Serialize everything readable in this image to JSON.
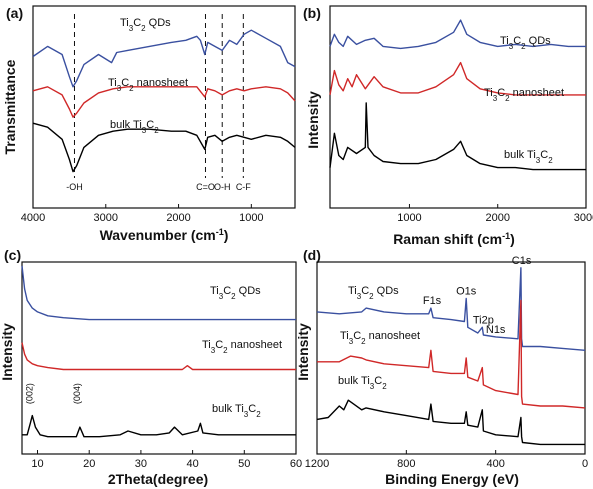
{
  "chart_data": [
    {
      "type": "line",
      "panel": "(a)",
      "xlabel": "Wavenumber (cm",
      "xlabel_sup": "-1",
      "xlabel_end": ")",
      "ylabel": "Transmittance",
      "xlim": [
        4000,
        400
      ],
      "ylim": [
        0,
        10
      ],
      "xticks": [
        4000,
        3000,
        2000,
        1000
      ],
      "series": [
        {
          "name": "Ti3C2 QDs",
          "color": "#3a50a0",
          "x": [
            4000,
            3800,
            3600,
            3500,
            3450,
            3400,
            3300,
            3100,
            2920,
            2850,
            2700,
            2400,
            2100,
            1900,
            1750,
            1700,
            1640,
            1600,
            1500,
            1400,
            1300,
            1200,
            1100,
            1000,
            800,
            600,
            500,
            400
          ],
          "y": [
            7.5,
            8.0,
            7.6,
            6.5,
            6.0,
            6.3,
            7.1,
            7.6,
            7.2,
            7.7,
            7.8,
            8.0,
            8.2,
            8.3,
            8.5,
            8.3,
            7.6,
            8.2,
            8.0,
            7.8,
            8.3,
            8.1,
            8.6,
            8.8,
            8.4,
            8.0,
            7.2,
            7.0
          ]
        },
        {
          "name": "Ti3C2 nanosheet",
          "color": "#d02828",
          "x": [
            4000,
            3800,
            3600,
            3500,
            3450,
            3400,
            3300,
            3100,
            2900,
            2700,
            2400,
            2100,
            1900,
            1750,
            1640,
            1600,
            1500,
            1400,
            1300,
            1200,
            1100,
            1000,
            800,
            600,
            500,
            400
          ],
          "y": [
            5.8,
            6.0,
            5.6,
            4.9,
            4.5,
            4.7,
            5.2,
            5.7,
            5.9,
            6.0,
            6.0,
            6.0,
            6.0,
            6.0,
            5.5,
            5.9,
            5.8,
            5.6,
            5.8,
            5.9,
            5.8,
            5.9,
            6.0,
            5.9,
            5.7,
            5.3
          ]
        },
        {
          "name": "bulk Ti3C2",
          "color": "#000000",
          "x": [
            4000,
            3800,
            3600,
            3500,
            3450,
            3400,
            3300,
            3100,
            2900,
            2700,
            2400,
            2100,
            1900,
            1750,
            1640,
            1600,
            1500,
            1400,
            1300,
            1200,
            1100,
            1000,
            800,
            600,
            500,
            400
          ],
          "y": [
            4.2,
            4.0,
            3.4,
            2.4,
            1.8,
            2.1,
            3.0,
            3.6,
            3.8,
            3.9,
            3.9,
            3.8,
            3.8,
            3.6,
            2.9,
            3.5,
            3.6,
            3.3,
            3.5,
            3.6,
            3.5,
            3.4,
            3.6,
            3.5,
            3.3,
            3.0
          ]
        }
      ],
      "vlines": [
        {
          "x": 3430,
          "label": "-OH"
        },
        {
          "x": 1630,
          "label": "C=O"
        },
        {
          "x": 1400,
          "label": "O-H"
        },
        {
          "x": 1110,
          "label": "C-F"
        }
      ]
    },
    {
      "type": "line",
      "panel": "(b)",
      "xlabel": "Raman shift (cm",
      "xlabel_sup": "-1",
      "xlabel_end": ")",
      "ylabel": "Intensity",
      "xlim": [
        100,
        3000
      ],
      "ylim": [
        0,
        10
      ],
      "xticks": [
        1000,
        2000,
        3000
      ],
      "series": [
        {
          "name": "Ti3C2 QDs",
          "color": "#3a50a0",
          "x": [
            100,
            150,
            200,
            250,
            300,
            400,
            500,
            600,
            700,
            900,
            1100,
            1300,
            1500,
            1580,
            1650,
            1800,
            2000,
            2200,
            2400,
            2600,
            2800,
            3000
          ],
          "y": [
            8.0,
            8.6,
            8.2,
            8.0,
            8.5,
            8.1,
            8.3,
            8.4,
            8.0,
            7.9,
            8.0,
            8.2,
            8.7,
            9.3,
            8.6,
            8.2,
            8.0,
            8.1,
            8.0,
            8.1,
            8.0,
            8.0
          ]
        },
        {
          "name": "Ti3C2 nanosheet",
          "color": "#d02828",
          "x": [
            100,
            150,
            200,
            250,
            300,
            350,
            400,
            500,
            600,
            700,
            900,
            1100,
            1300,
            1500,
            1580,
            1650,
            1800,
            2000,
            2200,
            2400,
            2600,
            2800,
            3000
          ],
          "y": [
            5.6,
            6.8,
            6.1,
            5.8,
            6.4,
            6.0,
            6.6,
            5.9,
            6.5,
            6.0,
            5.7,
            5.7,
            6.0,
            6.6,
            7.2,
            6.4,
            5.9,
            5.7,
            5.6,
            5.6,
            5.6,
            5.6,
            5.6
          ]
        },
        {
          "name": "bulk Ti3C2",
          "color": "#000000",
          "x": [
            100,
            150,
            200,
            250,
            300,
            400,
            500,
            510,
            530,
            600,
            700,
            900,
            1100,
            1300,
            1500,
            1580,
            1650,
            1800,
            2000,
            2200,
            2400,
            2600,
            2800,
            3000
          ],
          "y": [
            2.0,
            3.7,
            2.6,
            2.4,
            3.0,
            2.7,
            3.0,
            5.2,
            3.0,
            2.6,
            2.3,
            2.2,
            2.2,
            2.4,
            2.9,
            3.3,
            2.6,
            2.2,
            2.0,
            2.0,
            1.9,
            1.9,
            1.9,
            1.9
          ]
        }
      ]
    },
    {
      "type": "line",
      "panel": "(c)",
      "xlabel": "2Theta(degree)",
      "ylabel": "Intensity",
      "xlim": [
        7,
        60
      ],
      "ylim": [
        0,
        10
      ],
      "xticks": [
        10,
        20,
        30,
        40,
        50,
        60
      ],
      "series": [
        {
          "name": "Ti3C2 QDs",
          "color": "#3a50a0",
          "x": [
            7,
            7.5,
            8,
            9,
            10,
            12,
            15,
            20,
            30,
            40,
            50,
            60
          ],
          "y": [
            9.8,
            8.6,
            8.0,
            7.6,
            7.4,
            7.2,
            7.1,
            7.0,
            7.0,
            7.0,
            7.0,
            7.0
          ]
        },
        {
          "name": "Ti3C2 nanosheet",
          "color": "#d02828",
          "x": [
            7,
            7.5,
            8,
            9,
            10,
            12,
            15,
            20,
            30,
            38,
            39,
            40,
            50,
            60
          ],
          "y": [
            5.8,
            5.2,
            4.9,
            4.7,
            4.6,
            4.5,
            4.4,
            4.4,
            4.4,
            4.4,
            4.6,
            4.4,
            4.4,
            4.4
          ]
        },
        {
          "name": "bulk Ti3C2",
          "color": "#000000",
          "x": [
            7,
            8,
            8.6,
            9,
            9.6,
            10.5,
            12,
            15,
            17.5,
            18.2,
            19,
            22,
            26,
            27.5,
            30,
            33,
            35.5,
            36.5,
            38,
            41,
            41.5,
            42,
            45,
            48,
            52,
            56,
            60
          ],
          "y": [
            1.0,
            1.0,
            1.6,
            2.0,
            1.4,
            1.0,
            0.9,
            0.9,
            0.9,
            1.4,
            0.9,
            0.9,
            1.0,
            1.2,
            1.0,
            1.0,
            1.1,
            1.4,
            1.0,
            1.2,
            1.6,
            1.1,
            1.0,
            1.0,
            1.0,
            1.0,
            1.0
          ]
        }
      ],
      "annotations": [
        {
          "x": 9,
          "label": "(002)"
        },
        {
          "x": 18.2,
          "label": "(004)"
        }
      ]
    },
    {
      "type": "line",
      "panel": "(d)",
      "xlabel": "Binding Energy (eV)",
      "ylabel": "Intensity",
      "xlim": [
        1200,
        0
      ],
      "ylim": [
        0,
        10
      ],
      "xticks": [
        1200,
        800,
        400,
        0
      ],
      "series": [
        {
          "name": "Ti3C2 QDs",
          "color": "#3a50a0",
          "x": [
            1200,
            1100,
            1000,
            980,
            900,
            800,
            700,
            690,
            680,
            600,
            540,
            532,
            525,
            480,
            460,
            455,
            400,
            300,
            287,
            284,
            280,
            200,
            100,
            0
          ],
          "y": [
            7.4,
            7.3,
            7.4,
            7.6,
            7.4,
            7.3,
            7.3,
            7.6,
            7.1,
            7.0,
            6.9,
            8.1,
            6.6,
            6.3,
            6.6,
            6.2,
            6.1,
            6.0,
            9.7,
            6.0,
            5.6,
            5.6,
            5.5,
            5.4
          ]
        },
        {
          "name": "Ti3C2 nanosheet",
          "color": "#d02828",
          "x": [
            1200,
            1100,
            1050,
            1000,
            980,
            900,
            800,
            700,
            690,
            680,
            600,
            540,
            532,
            525,
            480,
            460,
            455,
            400,
            300,
            287,
            284,
            280,
            200,
            100,
            0
          ],
          "y": [
            4.8,
            4.8,
            5.1,
            5.0,
            4.9,
            4.7,
            4.6,
            4.5,
            5.4,
            4.3,
            4.2,
            4.2,
            5.0,
            4.0,
            3.8,
            4.5,
            3.6,
            3.3,
            3.1,
            8.0,
            3.0,
            2.6,
            2.5,
            2.5,
            2.4
          ]
        },
        {
          "name": "bulk Ti3C2",
          "color": "#000000",
          "x": [
            1200,
            1150,
            1100,
            1080,
            1060,
            1000,
            980,
            900,
            800,
            700,
            690,
            680,
            600,
            540,
            532,
            525,
            480,
            460,
            455,
            400,
            300,
            287,
            284,
            280,
            200,
            100,
            0
          ],
          "y": [
            1.8,
            1.9,
            2.5,
            2.3,
            2.8,
            2.3,
            2.4,
            2.2,
            2.0,
            1.8,
            2.6,
            1.7,
            1.6,
            1.6,
            2.2,
            1.5,
            1.4,
            2.3,
            1.2,
            1.0,
            0.9,
            1.9,
            0.9,
            0.6,
            0.5,
            0.5,
            0.5
          ]
        }
      ],
      "annotations": [
        {
          "x": 685,
          "label": "F1s"
        },
        {
          "x": 532,
          "label": "O1s"
        },
        {
          "x": 455,
          "label": "Ti2p"
        },
        {
          "x": 400,
          "label": "N1s"
        },
        {
          "x": 284,
          "label": "C1s"
        }
      ]
    }
  ]
}
